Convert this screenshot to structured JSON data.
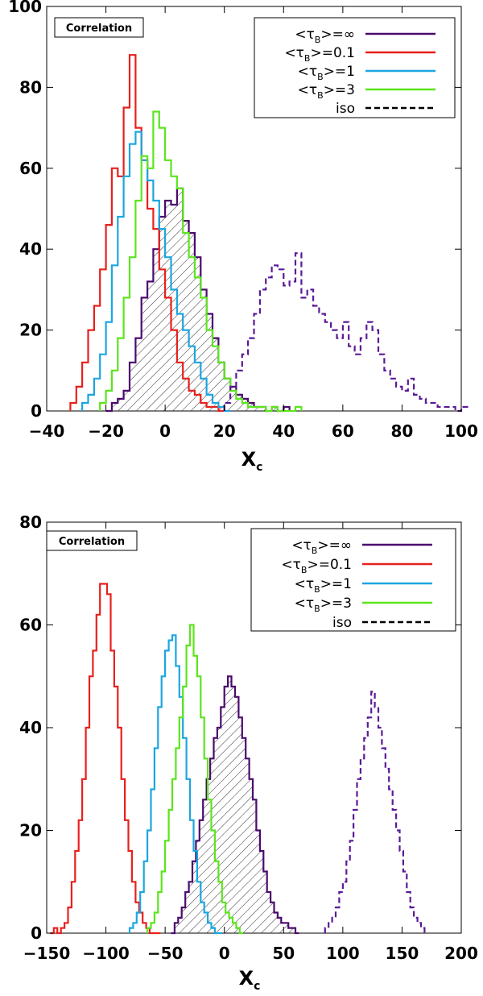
{
  "chart_data": [
    {
      "id": "top",
      "type": "histogram",
      "badge": "Correlation",
      "xlabel": "X",
      "xlabel_subscript": "c",
      "xlim": [
        -40,
        100
      ],
      "ylim": [
        0,
        100
      ],
      "xticks": [
        -40,
        -20,
        0,
        20,
        40,
        60,
        80,
        100
      ],
      "yticks": [
        0,
        20,
        40,
        60,
        80,
        100
      ],
      "legend_position": "top-right",
      "bin_width": 2,
      "series": [
        {
          "key": "inf",
          "name": "<τB>=∞",
          "prefix": "<τ",
          "sub": "B",
          "suffix": ">=∞",
          "color": "#4b0a6e",
          "line": "solid",
          "hatched": true,
          "x_start": -20,
          "values": [
            0,
            2,
            3,
            5,
            12,
            18,
            28,
            32,
            40,
            48,
            52,
            51,
            55,
            47,
            44,
            38,
            30,
            24,
            18,
            12,
            8,
            6,
            4,
            3,
            2,
            1,
            1,
            0,
            1,
            0,
            1
          ]
        },
        {
          "key": "b01",
          "name": "<τB>=0.1",
          "prefix": "<τ",
          "sub": "B",
          "suffix": ">=0.1",
          "color": "#e8201c",
          "line": "solid",
          "hatched": false,
          "x_start": -32,
          "values": [
            2,
            6,
            12,
            20,
            26,
            35,
            46,
            60,
            58,
            75,
            88,
            70,
            62,
            50,
            45,
            35,
            28,
            20,
            12,
            8,
            5,
            4,
            2,
            1,
            1,
            0
          ]
        },
        {
          "key": "b1",
          "name": "<τB>=1",
          "prefix": "<τ",
          "sub": "B",
          "suffix": ">=1",
          "color": "#1ba6e0",
          "line": "solid",
          "hatched": false,
          "x_start": -28,
          "values": [
            2,
            4,
            8,
            14,
            22,
            36,
            48,
            58,
            66,
            69,
            62,
            57,
            52,
            45,
            38,
            30,
            24,
            20,
            16,
            12,
            8,
            4,
            2,
            1,
            0
          ]
        },
        {
          "key": "b3",
          "name": "<τB>=3",
          "prefix": "<τ",
          "sub": "B",
          "suffix": ">=3",
          "color": "#5be51c",
          "line": "solid",
          "hatched": false,
          "x_start": -22,
          "values": [
            2,
            5,
            10,
            18,
            28,
            38,
            52,
            63,
            60,
            74,
            70,
            62,
            58,
            55,
            44,
            38,
            33,
            28,
            20,
            16,
            12,
            8,
            5,
            3,
            2,
            1,
            1,
            1,
            0,
            1,
            0,
            0,
            0,
            1
          ]
        },
        {
          "key": "iso",
          "name": "iso",
          "prefix": "iso",
          "sub": "",
          "suffix": "",
          "color": "#5a1a96",
          "line": "dashed",
          "hatched": false,
          "x_start": 20,
          "values": [
            2,
            6,
            10,
            14,
            18,
            24,
            30,
            33,
            36,
            35,
            31,
            32,
            39,
            28,
            30,
            26,
            24,
            22,
            20,
            18,
            22,
            16,
            14,
            18,
            22,
            20,
            14,
            10,
            8,
            6,
            5,
            8,
            4,
            3,
            2,
            2,
            1,
            1,
            1,
            0,
            1
          ]
        }
      ]
    },
    {
      "id": "bottom",
      "type": "histogram",
      "badge": "Correlation",
      "xlabel": "X",
      "xlabel_subscript": "c",
      "xlim": [
        -150,
        200
      ],
      "ylim": [
        0,
        80
      ],
      "xticks": [
        -150,
        -100,
        -50,
        0,
        50,
        100,
        150,
        200
      ],
      "yticks": [
        0,
        20,
        40,
        60,
        80
      ],
      "legend_position": "top-right",
      "bin_width": 3,
      "series": [
        {
          "key": "inf",
          "name": "<τB>=∞",
          "prefix": "<τ",
          "sub": "B",
          "suffix": ">=∞",
          "color": "#4b0a6e",
          "line": "solid",
          "hatched": true,
          "x_start": -45,
          "values": [
            0,
            2,
            3,
            5,
            8,
            10,
            14,
            18,
            22,
            26,
            30,
            34,
            38,
            40,
            44,
            48,
            50,
            48,
            46,
            42,
            38,
            34,
            30,
            26,
            20,
            16,
            12,
            8,
            6,
            4,
            3,
            2,
            2,
            1,
            1,
            0
          ]
        },
        {
          "key": "b01",
          "name": "<τB>=0.1",
          "prefix": "<τ",
          "sub": "B",
          "suffix": ">=0.1",
          "color": "#e8201c",
          "line": "solid",
          "hatched": false,
          "x_start": -147,
          "values": [
            0,
            1,
            0,
            1,
            2,
            5,
            10,
            16,
            22,
            30,
            40,
            50,
            55,
            62,
            68,
            68,
            66,
            55,
            48,
            40,
            30,
            22,
            16,
            10,
            6,
            4,
            2,
            1,
            0,
            0,
            0
          ]
        },
        {
          "key": "b1",
          "name": "<τB>=1",
          "prefix": "<τ",
          "sub": "B",
          "suffix": ">=1",
          "color": "#1ba6e0",
          "line": "solid",
          "hatched": false,
          "x_start": -80,
          "values": [
            1,
            2,
            4,
            8,
            14,
            20,
            28,
            36,
            44,
            50,
            55,
            57,
            58,
            52,
            46,
            38,
            30,
            22,
            16,
            10,
            6,
            4,
            2,
            1,
            0,
            0
          ]
        },
        {
          "key": "b3",
          "name": "<τB>=3",
          "prefix": "<τ",
          "sub": "B",
          "suffix": ">=3",
          "color": "#5be51c",
          "line": "solid",
          "hatched": false,
          "x_start": -65,
          "values": [
            1,
            2,
            4,
            8,
            12,
            18,
            24,
            30,
            36,
            42,
            48,
            56,
            60,
            54,
            50,
            42,
            34,
            26,
            20,
            14,
            10,
            6,
            4,
            3,
            2,
            1,
            0
          ]
        },
        {
          "key": "iso",
          "name": "iso",
          "prefix": "iso",
          "sub": "",
          "suffix": "",
          "color": "#5a1a96",
          "line": "dashed",
          "hatched": false,
          "x_start": 85,
          "values": [
            1,
            2,
            3,
            5,
            8,
            10,
            14,
            18,
            24,
            30,
            34,
            38,
            42,
            47,
            44,
            40,
            36,
            32,
            28,
            24,
            20,
            16,
            12,
            8,
            5,
            3,
            2,
            1
          ]
        }
      ]
    }
  ]
}
